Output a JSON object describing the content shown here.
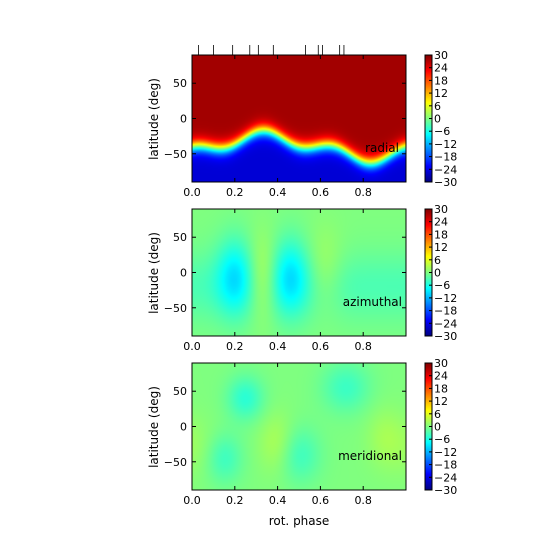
{
  "chart_data": {
    "type": "heatmap",
    "colormap": "jet",
    "clim": [
      -30,
      30
    ],
    "colorbar_ticks": [
      "30",
      "24",
      "18",
      "12",
      "6",
      "0",
      "−6",
      "−12",
      "−18",
      "−24",
      "−30"
    ],
    "colorbar_values": [
      30,
      24,
      18,
      12,
      6,
      0,
      -6,
      -12,
      -18,
      -24,
      -30
    ],
    "xlim": [
      0.0,
      1.0
    ],
    "ylim": [
      -90,
      90
    ],
    "x_ticks": [
      "0.0",
      "0.2",
      "0.4",
      "0.6",
      "0.8"
    ],
    "x_tick_values": [
      0.0,
      0.2,
      0.4,
      0.6,
      0.8
    ],
    "y_ticks": [
      "50",
      "0",
      "−50"
    ],
    "y_tick_values": [
      50,
      0,
      -50
    ],
    "ylabel": "latitude (deg)",
    "xlabel": "rot. phase",
    "observation_phases": [
      0.03,
      0.1,
      0.19,
      0.27,
      0.31,
      0.38,
      0.53,
      0.59,
      0.61,
      0.69,
      0.71
    ],
    "panels": [
      {
        "label": "radial",
        "field": "radial"
      },
      {
        "label": "azimuthal",
        "field": "azimuthal"
      },
      {
        "label": "meridional",
        "field": "meridional"
      }
    ]
  }
}
